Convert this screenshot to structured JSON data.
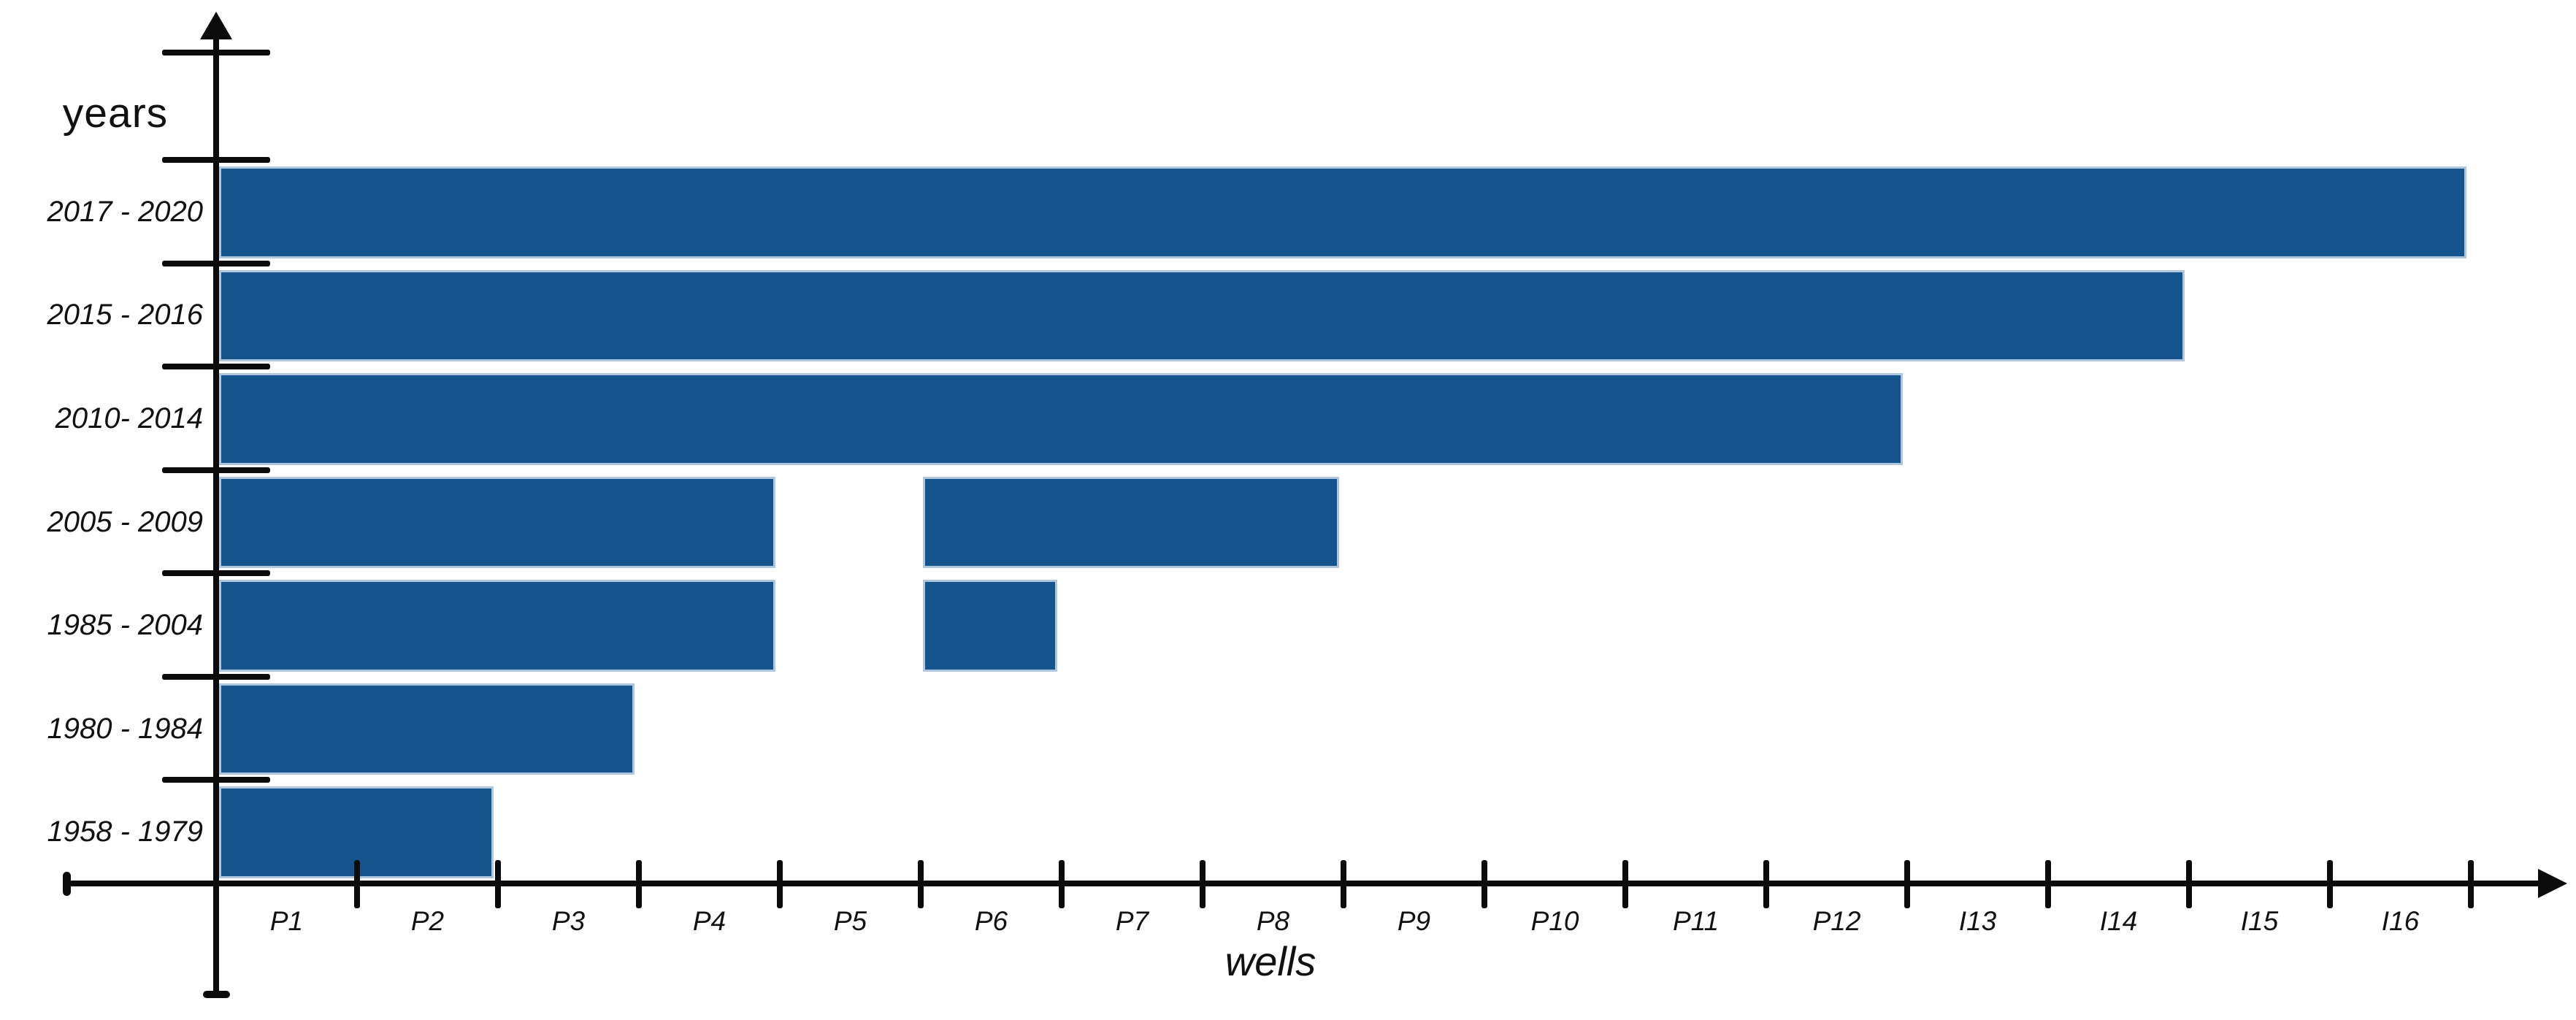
{
  "labels": {
    "y_axis_title": "years",
    "x_axis_title": "wells"
  },
  "colors": {
    "bar_fill": "#15538C",
    "bar_border": "#AFC6DD",
    "axis": "#0B0B0B",
    "background": "#FFFFFF",
    "text": "#111111"
  },
  "chart_data": {
    "type": "bar",
    "orientation": "horizontal",
    "title": "",
    "xlabel": "wells",
    "ylabel": "years",
    "grid": false,
    "legend": false,
    "xlim": [
      0,
      16
    ],
    "x_tick_labels": [
      "P1",
      "P2",
      "P3",
      "P4",
      "P5",
      "P6",
      "P7",
      "P8",
      "P9",
      "P10",
      "P11",
      "P12",
      "I13",
      "I14",
      "I15",
      "I16"
    ],
    "categories": [
      "2017 - 2020",
      "2015 - 2016",
      "2010- 2014",
      "2005 - 2009",
      "1985 - 2004",
      "1980 - 1984",
      "1958 - 1979"
    ],
    "rows": [
      {
        "label": "2017 - 2020",
        "segments": [
          {
            "start": 0,
            "end": 16
          }
        ]
      },
      {
        "label": "2015 - 2016",
        "segments": [
          {
            "start": 0,
            "end": 14
          }
        ]
      },
      {
        "label": "2010- 2014",
        "segments": [
          {
            "start": 0,
            "end": 12
          }
        ]
      },
      {
        "label": "2005 - 2009",
        "segments": [
          {
            "start": 0,
            "end": 4
          },
          {
            "start": 5,
            "end": 8
          }
        ]
      },
      {
        "label": "1985 - 2004",
        "segments": [
          {
            "start": 0,
            "end": 4
          },
          {
            "start": 5,
            "end": 6
          }
        ]
      },
      {
        "label": "1980 - 1984",
        "segments": [
          {
            "start": 0,
            "end": 3
          }
        ]
      },
      {
        "label": "1958 - 1979",
        "segments": [
          {
            "start": 0,
            "end": 2
          }
        ]
      }
    ]
  }
}
